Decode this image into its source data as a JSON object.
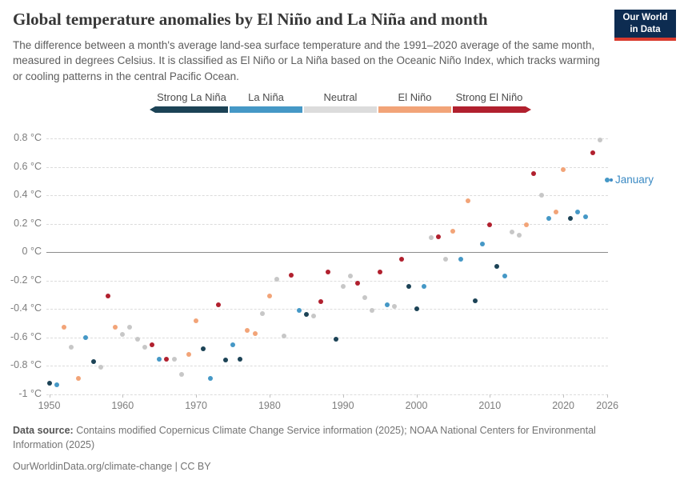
{
  "header": {
    "title": "Global temperature anomalies by El Niño and La Niña and month",
    "subtitle": "The difference between a month's average land-sea surface temperature and the 1991–2020 average of the same month, measured in degrees Celsius. It is classified as El Niño or La Niña based on the Oceanic Niño Index, which tracks warming or cooling patterns in the central Pacific Ocean.",
    "logo": {
      "line1": "Our World",
      "line2": "in Data",
      "bg_color": "#0d2c51",
      "accent_color": "#d93a2d"
    }
  },
  "legend": {
    "order": [
      "strong-la-nina",
      "la-nina",
      "neutral",
      "el-nino",
      "strong-el-nino"
    ]
  },
  "phases": {
    "strong-la-nina": {
      "label": "Strong La Niña",
      "color": "#1c4356",
      "legend_color": "#1c4356"
    },
    "la-nina": {
      "label": "La Niña",
      "color": "#4598c6",
      "legend_color": "#4598c6"
    },
    "neutral": {
      "label": "Neutral",
      "color": "#c7c7c7",
      "legend_color": "#dcdcdc"
    },
    "el-nino": {
      "label": "El Niño",
      "color": "#f2a478",
      "legend_color": "#f2a478"
    },
    "strong-el-nino": {
      "label": "Strong El Niño",
      "color": "#b1202e",
      "legend_color": "#b1202e"
    }
  },
  "chart_data": {
    "type": "scatter",
    "title": "Global temperature anomalies by El Niño and La Niña and month",
    "xlabel": "",
    "ylabel": "Temperature anomaly (°C)",
    "xlim": [
      1949,
      2027
    ],
    "ylim": [
      -1.0,
      0.8
    ],
    "grid": "dashed horizontal, solid zero line",
    "legend_position": "top center",
    "y_ticks": [
      {
        "v": 0.8,
        "label": "0.8 °C"
      },
      {
        "v": 0.6,
        "label": "0.6 °C"
      },
      {
        "v": 0.4,
        "label": "0.4 °C"
      },
      {
        "v": 0.2,
        "label": "0.2 °C"
      },
      {
        "v": 0,
        "label": "0 °C"
      },
      {
        "v": -0.2,
        "label": "-0.2 °C"
      },
      {
        "v": -0.4,
        "label": "-0.4 °C"
      },
      {
        "v": -0.6,
        "label": "-0.6 °C"
      },
      {
        "v": -0.8,
        "label": "-0.8 °C"
      },
      {
        "v": -1,
        "label": "-1 °C"
      }
    ],
    "x_ticks": [
      {
        "v": 1950,
        "label": "1950"
      },
      {
        "v": 1960,
        "label": "1960"
      },
      {
        "v": 1970,
        "label": "1970"
      },
      {
        "v": 1980,
        "label": "1980"
      },
      {
        "v": 1990,
        "label": "1990"
      },
      {
        "v": 2000,
        "label": "2000"
      },
      {
        "v": 2010,
        "label": "2010"
      },
      {
        "v": 2020,
        "label": "2020"
      },
      {
        "v": 2026,
        "label": "2026"
      }
    ],
    "points": [
      {
        "year": 1950,
        "value": -0.92,
        "phase": "strong-la-nina"
      },
      {
        "year": 1951,
        "value": -0.93,
        "phase": "la-nina"
      },
      {
        "year": 1952,
        "value": -0.53,
        "phase": "el-nino"
      },
      {
        "year": 1953,
        "value": -0.67,
        "phase": "neutral"
      },
      {
        "year": 1954,
        "value": -0.89,
        "phase": "el-nino"
      },
      {
        "year": 1955,
        "value": -0.6,
        "phase": "la-nina"
      },
      {
        "year": 1956,
        "value": -0.77,
        "phase": "strong-la-nina"
      },
      {
        "year": 1957,
        "value": -0.81,
        "phase": "neutral"
      },
      {
        "year": 1958,
        "value": -0.31,
        "phase": "strong-el-nino"
      },
      {
        "year": 1959,
        "value": -0.53,
        "phase": "el-nino"
      },
      {
        "year": 1960,
        "value": -0.58,
        "phase": "neutral"
      },
      {
        "year": 1961,
        "value": -0.53,
        "phase": "neutral"
      },
      {
        "year": 1962,
        "value": -0.61,
        "phase": "neutral"
      },
      {
        "year": 1963,
        "value": -0.67,
        "phase": "neutral"
      },
      {
        "year": 1964,
        "value": -0.65,
        "phase": "strong-el-nino"
      },
      {
        "year": 1965,
        "value": -0.75,
        "phase": "la-nina"
      },
      {
        "year": 1966,
        "value": -0.75,
        "phase": "strong-el-nino"
      },
      {
        "year": 1967,
        "value": -0.75,
        "phase": "neutral"
      },
      {
        "year": 1968,
        "value": -0.86,
        "phase": "neutral"
      },
      {
        "year": 1969,
        "value": -0.72,
        "phase": "el-nino"
      },
      {
        "year": 1970,
        "value": -0.48,
        "phase": "el-nino"
      },
      {
        "year": 1971,
        "value": -0.68,
        "phase": "strong-la-nina"
      },
      {
        "year": 1972,
        "value": -0.89,
        "phase": "la-nina"
      },
      {
        "year": 1973,
        "value": -0.37,
        "phase": "strong-el-nino"
      },
      {
        "year": 1974,
        "value": -0.76,
        "phase": "strong-la-nina"
      },
      {
        "year": 1975,
        "value": -0.65,
        "phase": "la-nina"
      },
      {
        "year": 1976,
        "value": -0.75,
        "phase": "strong-la-nina"
      },
      {
        "year": 1977,
        "value": -0.55,
        "phase": "el-nino"
      },
      {
        "year": 1978,
        "value": -0.57,
        "phase": "el-nino"
      },
      {
        "year": 1979,
        "value": -0.43,
        "phase": "neutral"
      },
      {
        "year": 1980,
        "value": -0.31,
        "phase": "el-nino"
      },
      {
        "year": 1981,
        "value": -0.19,
        "phase": "neutral"
      },
      {
        "year": 1982,
        "value": -0.59,
        "phase": "neutral"
      },
      {
        "year": 1983,
        "value": -0.16,
        "phase": "strong-el-nino"
      },
      {
        "year": 1984,
        "value": -0.41,
        "phase": "la-nina"
      },
      {
        "year": 1985,
        "value": -0.44,
        "phase": "strong-la-nina"
      },
      {
        "year": 1986,
        "value": -0.45,
        "phase": "neutral"
      },
      {
        "year": 1987,
        "value": -0.35,
        "phase": "strong-el-nino"
      },
      {
        "year": 1988,
        "value": -0.14,
        "phase": "strong-el-nino"
      },
      {
        "year": 1989,
        "value": -0.61,
        "phase": "strong-la-nina"
      },
      {
        "year": 1990,
        "value": -0.24,
        "phase": "neutral"
      },
      {
        "year": 1991,
        "value": -0.17,
        "phase": "neutral"
      },
      {
        "year": 1992,
        "value": -0.22,
        "phase": "strong-el-nino"
      },
      {
        "year": 1993,
        "value": -0.32,
        "phase": "neutral"
      },
      {
        "year": 1994,
        "value": -0.41,
        "phase": "neutral"
      },
      {
        "year": 1995,
        "value": -0.14,
        "phase": "strong-el-nino"
      },
      {
        "year": 1996,
        "value": -0.37,
        "phase": "la-nina"
      },
      {
        "year": 1997,
        "value": -0.38,
        "phase": "neutral"
      },
      {
        "year": 1998,
        "value": -0.05,
        "phase": "strong-el-nino"
      },
      {
        "year": 1999,
        "value": -0.24,
        "phase": "strong-la-nina"
      },
      {
        "year": 2000,
        "value": -0.4,
        "phase": "strong-la-nina"
      },
      {
        "year": 2001,
        "value": -0.24,
        "phase": "la-nina"
      },
      {
        "year": 2002,
        "value": 0.1,
        "phase": "neutral"
      },
      {
        "year": 2003,
        "value": 0.11,
        "phase": "strong-el-nino"
      },
      {
        "year": 2004,
        "value": -0.05,
        "phase": "neutral"
      },
      {
        "year": 2005,
        "value": 0.15,
        "phase": "el-nino"
      },
      {
        "year": 2006,
        "value": -0.05,
        "phase": "la-nina"
      },
      {
        "year": 2007,
        "value": 0.36,
        "phase": "el-nino"
      },
      {
        "year": 2008,
        "value": -0.34,
        "phase": "strong-la-nina"
      },
      {
        "year": 2009,
        "value": 0.06,
        "phase": "la-nina"
      },
      {
        "year": 2010,
        "value": 0.19,
        "phase": "strong-el-nino"
      },
      {
        "year": 2011,
        "value": -0.1,
        "phase": "strong-la-nina"
      },
      {
        "year": 2012,
        "value": -0.17,
        "phase": "la-nina"
      },
      {
        "year": 2013,
        "value": 0.14,
        "phase": "neutral"
      },
      {
        "year": 2014,
        "value": 0.12,
        "phase": "neutral"
      },
      {
        "year": 2015,
        "value": 0.19,
        "phase": "el-nino"
      },
      {
        "year": 2016,
        "value": 0.55,
        "phase": "strong-el-nino"
      },
      {
        "year": 2017,
        "value": 0.4,
        "phase": "neutral"
      },
      {
        "year": 2018,
        "value": 0.24,
        "phase": "la-nina"
      },
      {
        "year": 2019,
        "value": 0.28,
        "phase": "el-nino"
      },
      {
        "year": 2020,
        "value": 0.58,
        "phase": "el-nino"
      },
      {
        "year": 2021,
        "value": 0.24,
        "phase": "strong-la-nina"
      },
      {
        "year": 2022,
        "value": 0.28,
        "phase": "la-nina"
      },
      {
        "year": 2023,
        "value": 0.25,
        "phase": "la-nina"
      },
      {
        "year": 2024,
        "value": 0.7,
        "phase": "strong-el-nino"
      },
      {
        "year": 2025,
        "value": 0.79,
        "phase": "neutral"
      },
      {
        "year": 2026,
        "value": 0.51,
        "phase": "la-nina"
      }
    ],
    "annotation": {
      "text": "January",
      "year": 2026,
      "value": 0.51,
      "color": "#3b8ac4"
    }
  },
  "footer": {
    "source_label": "Data source:",
    "source_text": " Contains modified Copernicus Climate Change Service information (2025); NOAA National Centers for Environmental Information (2025)",
    "citation_link": "OurWorldinData.org/climate-change",
    "citation_license": " | CC BY"
  }
}
